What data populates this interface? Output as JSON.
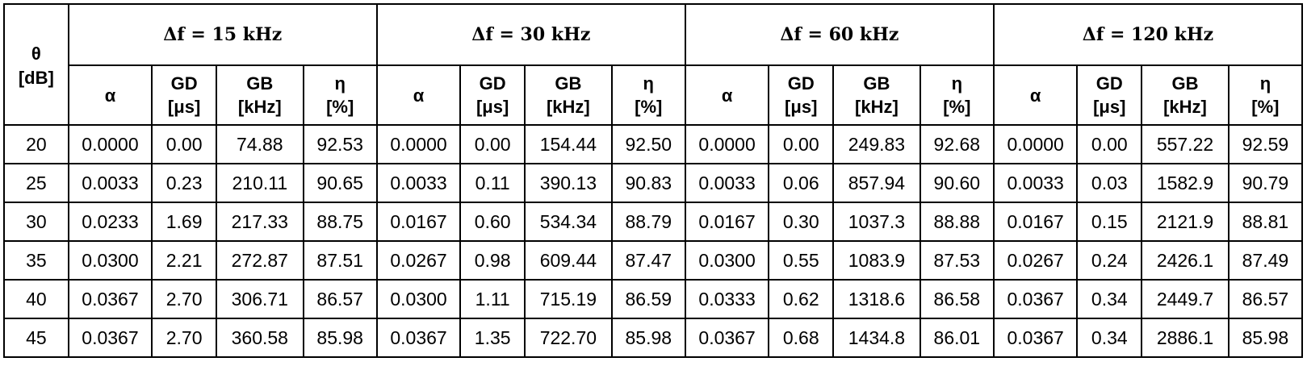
{
  "table": {
    "theta_header": [
      "θ",
      "[dB]"
    ],
    "groups": [
      "𝚫𝐟 = 𝟏𝟓 𝐤𝐇𝐳",
      "𝚫𝐟 = 𝟑𝟎 𝐤𝐇𝐳",
      "𝚫𝐟 = 𝟔𝟎 𝐤𝐇𝐳",
      "𝚫𝐟 = 𝟏𝟐𝟎 𝐤𝐇𝐳"
    ],
    "sub_headers": {
      "alpha": [
        "α"
      ],
      "gd": [
        "GD",
        "[μs]"
      ],
      "gb": [
        "GB",
        "[kHz]"
      ],
      "eta": [
        "η",
        "[%]"
      ]
    },
    "rows": [
      [
        "20",
        "0.0000",
        "0.00",
        "74.88",
        "92.53",
        "0.0000",
        "0.00",
        "154.44",
        "92.50",
        "0.0000",
        "0.00",
        "249.83",
        "92.68",
        "0.0000",
        "0.00",
        "557.22",
        "92.59"
      ],
      [
        "25",
        "0.0033",
        "0.23",
        "210.11",
        "90.65",
        "0.0033",
        "0.11",
        "390.13",
        "90.83",
        "0.0033",
        "0.06",
        "857.94",
        "90.60",
        "0.0033",
        "0.03",
        "1582.9",
        "90.79"
      ],
      [
        "30",
        "0.0233",
        "1.69",
        "217.33",
        "88.75",
        "0.0167",
        "0.60",
        "534.34",
        "88.79",
        "0.0167",
        "0.30",
        "1037.3",
        "88.88",
        "0.0167",
        "0.15",
        "2121.9",
        "88.81"
      ],
      [
        "35",
        "0.0300",
        "2.21",
        "272.87",
        "87.51",
        "0.0267",
        "0.98",
        "609.44",
        "87.47",
        "0.0300",
        "0.55",
        "1083.9",
        "87.53",
        "0.0267",
        "0.24",
        "2426.1",
        "87.49"
      ],
      [
        "40",
        "0.0367",
        "2.70",
        "306.71",
        "86.57",
        "0.0300",
        "1.11",
        "715.19",
        "86.59",
        "0.0333",
        "0.62",
        "1318.6",
        "86.58",
        "0.0367",
        "0.34",
        "2449.7",
        "86.57"
      ],
      [
        "45",
        "0.0367",
        "2.70",
        "360.58",
        "85.98",
        "0.0367",
        "1.35",
        "722.70",
        "85.98",
        "0.0367",
        "0.68",
        "1434.8",
        "86.01",
        "0.0367",
        "0.34",
        "2886.1",
        "85.98"
      ]
    ]
  }
}
